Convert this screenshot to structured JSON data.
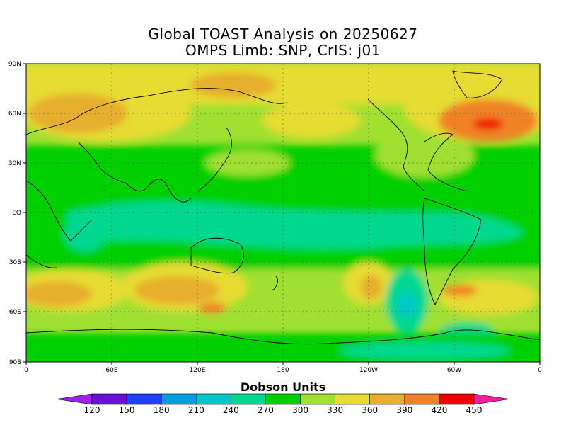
{
  "title_line1": "Global TOAST Analysis on 20250627",
  "title_line2": "OMPS Limb: SNP,  CrIS: j01",
  "lat_labels": [
    "90N",
    "60N",
    "30N",
    "EQ",
    "30S",
    "60S",
    "90S"
  ],
  "lon_labels": [
    "0",
    "60E",
    "120E",
    "180",
    "120W",
    "60W",
    "0"
  ],
  "colorbar": {
    "units_label": "Dobson Units",
    "tick_labels": [
      "120",
      "150",
      "180",
      "210",
      "240",
      "270",
      "300",
      "330",
      "360",
      "390",
      "420",
      "450"
    ],
    "colors": [
      "#a020f0",
      "#6b10d8",
      "#2040ff",
      "#00a0e0",
      "#00c8c8",
      "#00d890",
      "#00d000",
      "#a0e030",
      "#e6dc32",
      "#e6af2d",
      "#f08228",
      "#f00000",
      "#f01e9b"
    ]
  },
  "map_colors": {
    "c270": "#00d890",
    "c300": "#00d000",
    "c330": "#a0e030",
    "c360": "#e6dc32",
    "c390": "#e6af2d",
    "c420": "#f08228",
    "c450": "#f00000",
    "c240": "#00c8c8",
    "c210": "#00a0e0"
  }
}
